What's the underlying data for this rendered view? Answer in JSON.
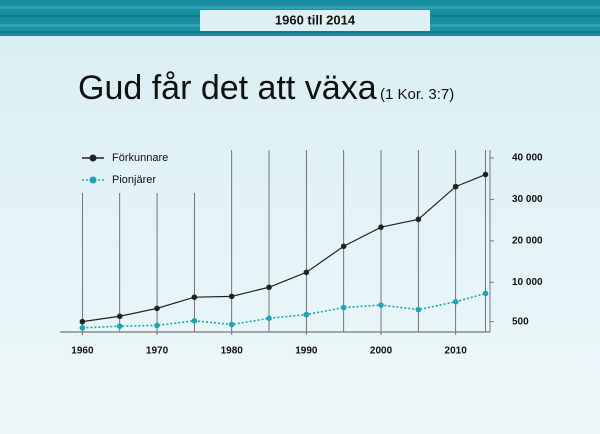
{
  "header": "1960 till 2014",
  "chart_data": {
    "type": "line",
    "title": "Gud får det att växa",
    "subtitle": "(1 Kor.  3:7)",
    "x": [
      1960,
      1965,
      1970,
      1975,
      1980,
      1985,
      1990,
      1995,
      2000,
      2005,
      2010,
      2014
    ],
    "series": [
      {
        "name": "Förkunnare",
        "color": "#222222",
        "values": [
          500,
          1800,
          3700,
          6400,
          6600,
          8800,
          12400,
          18700,
          23300,
          25200,
          33100,
          36000
        ]
      },
      {
        "name": "Pionjärer",
        "color": "#1aa7b5",
        "values": [
          -1000,
          -600,
          -400,
          700,
          -200,
          1300,
          2200,
          3900,
          4500,
          3400,
          5300,
          7300
        ]
      }
    ],
    "xlim": [
      1957,
      2015
    ],
    "xticks": [
      1960,
      1970,
      1980,
      1990,
      2000,
      2010
    ],
    "ylim": [
      -2000,
      40000
    ],
    "yticks": [
      500,
      {
        "value": 10000,
        "label": "10 000"
      },
      {
        "value": 20000,
        "label": "20 000"
      },
      {
        "value": 30000,
        "label": "30 000"
      },
      {
        "value": 40000,
        "label": "40 000"
      }
    ],
    "grid": true,
    "legend": "upper left"
  }
}
